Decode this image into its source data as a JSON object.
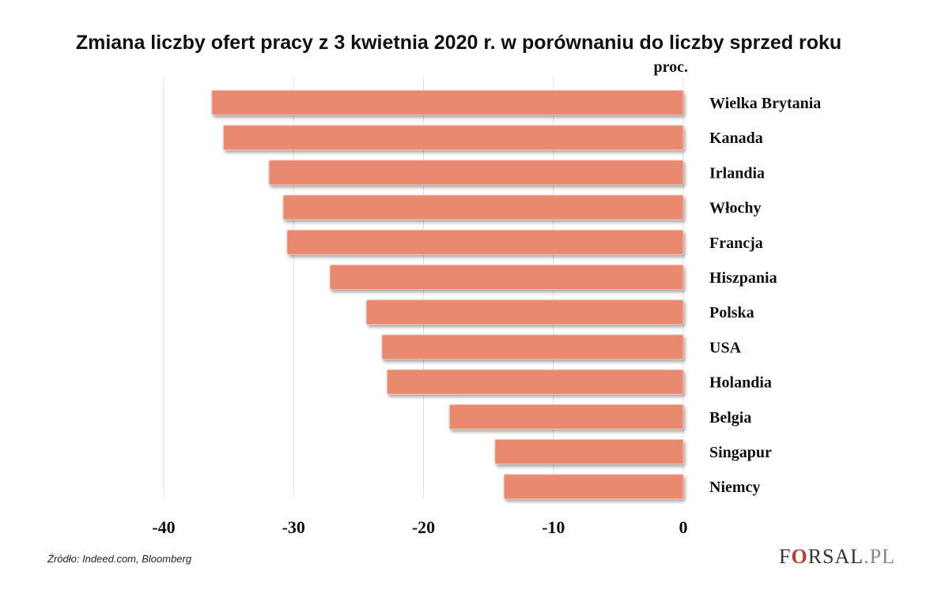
{
  "title": "Zmiana liczby ofert pracy z 3 kwietnia 2020 r. w porównaniu do liczby sprzed roku",
  "unit_label": "proc.",
  "source": "Źródło:  Indeed.com, Bloomberg",
  "logo": {
    "prefix": "F",
    "o": "O",
    "suffix": "RSAL",
    "tld": ".PL"
  },
  "colors": {
    "bar": "#e98a70",
    "grid": "#e0e0e0"
  },
  "chart_data": {
    "type": "bar",
    "orientation": "horizontal",
    "categories": [
      "Wielka Brytania",
      "Kanada",
      "Irlandia",
      "Włochy",
      "Francja",
      "Hiszpania",
      "Polska",
      "USA",
      "Holandia",
      "Belgia",
      "Singapur",
      "Niemcy"
    ],
    "values": [
      -36.3,
      -35.4,
      -31.9,
      -30.8,
      -30.5,
      -27.2,
      -24.4,
      -23.2,
      -22.8,
      -18.0,
      -14.5,
      -13.8
    ],
    "xlim": [
      -40,
      0
    ],
    "xticks": [
      -40,
      -30,
      -20,
      -10,
      0
    ],
    "xlabel": "",
    "ylabel": "proc.",
    "grid": "vertical"
  }
}
